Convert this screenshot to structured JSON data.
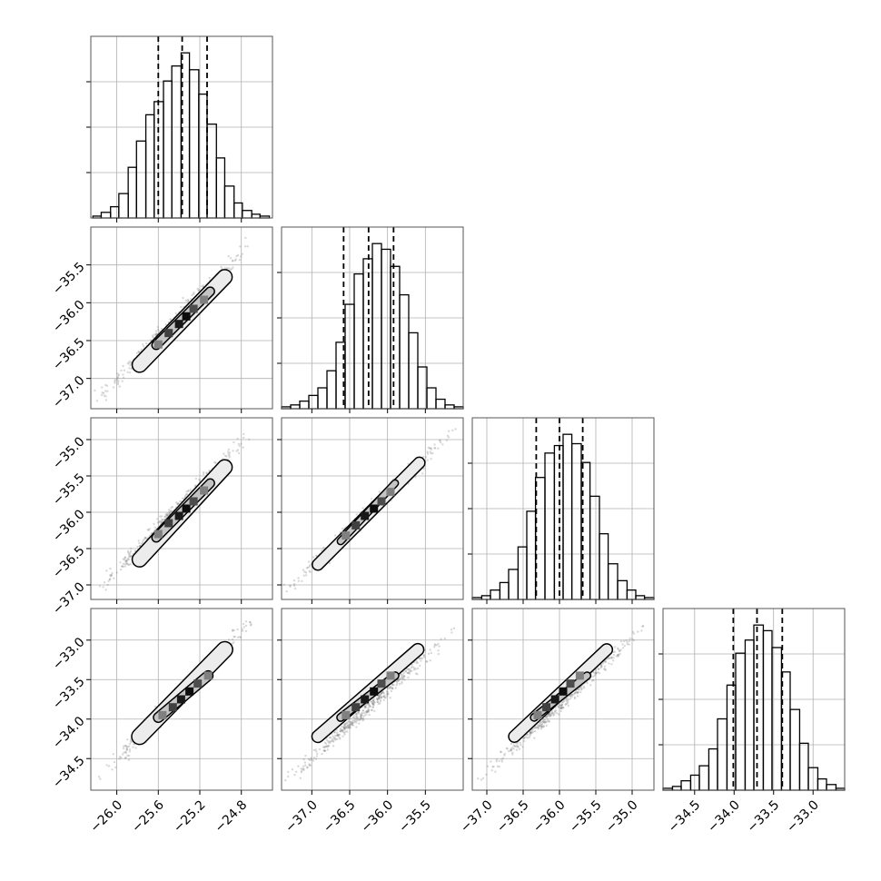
{
  "chart_data": {
    "type": "corner",
    "parameters": 4,
    "colors": {
      "line": "#000000",
      "grid": "#b0b0b0",
      "scatter": "#777777"
    },
    "grid": true,
    "axes": {
      "x": [
        {
          "range": [
            -26.25,
            -24.5
          ],
          "ticks": [
            -26.0,
            -25.6,
            -25.2,
            -24.8
          ],
          "tick_labels": [
            "−26.0",
            "−25.6",
            "−25.2",
            "−24.8"
          ]
        },
        {
          "range": [
            -37.4,
            -35.0
          ],
          "ticks": [
            -37.0,
            -36.5,
            -36.0,
            -35.5
          ],
          "tick_labels": [
            "−37.0",
            "−36.5",
            "−36.0",
            "−35.5"
          ]
        },
        {
          "range": [
            -37.2,
            -34.7
          ],
          "ticks": [
            -37.0,
            -36.5,
            -36.0,
            -35.5,
            -35.0
          ],
          "tick_labels": [
            "−37.0",
            "−36.5",
            "−36.0",
            "−35.5",
            "−35.0"
          ]
        },
        {
          "range": [
            -34.9,
            -32.6
          ],
          "ticks": [
            -34.5,
            -34.0,
            -33.5,
            -33.0
          ],
          "tick_labels": [
            "−34.5",
            "−34.0",
            "−33.5",
            "−33.0"
          ]
        }
      ],
      "y": [
        null,
        {
          "range": [
            -37.4,
            -35.0
          ],
          "ticks": [
            -35.5,
            -36.0,
            -36.5,
            -37.0
          ],
          "tick_labels": [
            "−35.5",
            "−36.0",
            "−36.5",
            "−37.0"
          ]
        },
        {
          "range": [
            -37.2,
            -34.7
          ],
          "ticks": [
            -35.0,
            -35.5,
            -36.0,
            -36.5,
            -37.0
          ],
          "tick_labels": [
            "−35.0",
            "−35.5",
            "−36.0",
            "−36.5",
            "−37.0"
          ]
        },
        {
          "range": [
            -34.9,
            -32.6
          ],
          "ticks": [
            -33.0,
            -33.5,
            -34.0,
            -34.5
          ],
          "tick_labels": [
            "−33.0",
            "−33.5",
            "−34.0",
            "−34.5"
          ]
        }
      ]
    },
    "quantiles": [
      [
        -25.6,
        -25.37,
        -25.13
      ],
      [
        -36.58,
        -36.25,
        -35.92
      ],
      [
        -36.32,
        -36.0,
        -35.68
      ],
      [
        -34.01,
        -33.71,
        -33.39
      ]
    ],
    "histograms": [
      {
        "bin_edges": [
          -26.23,
          -26.15,
          -26.06,
          -25.98,
          -25.89,
          -25.81,
          -25.72,
          -25.64,
          -25.55,
          -25.47,
          -25.38,
          -25.3,
          -25.21,
          -25.13,
          -25.04,
          -24.96,
          -24.87,
          -24.79,
          -24.7,
          -24.62,
          -24.53
        ],
        "counts": [
          1,
          3,
          6,
          13,
          27,
          41,
          55,
          62,
          73,
          81,
          88,
          79,
          66,
          50,
          32,
          17,
          8,
          4,
          2,
          1
        ]
      },
      {
        "bin_edges": [
          -37.4,
          -37.28,
          -37.16,
          -37.04,
          -36.92,
          -36.8,
          -36.68,
          -36.56,
          -36.44,
          -36.32,
          -36.2,
          -36.08,
          -35.96,
          -35.84,
          -35.72,
          -35.6,
          -35.48,
          -35.36,
          -35.24,
          -35.12,
          -35.0
        ],
        "counts": [
          1,
          2,
          4,
          7,
          11,
          20,
          35,
          55,
          71,
          79,
          87,
          84,
          75,
          60,
          40,
          22,
          11,
          5,
          2,
          1
        ]
      },
      {
        "bin_edges": [
          -37.2,
          -37.07,
          -36.95,
          -36.82,
          -36.7,
          -36.57,
          -36.45,
          -36.33,
          -36.2,
          -36.07,
          -35.95,
          -35.83,
          -35.7,
          -35.58,
          -35.45,
          -35.33,
          -35.2,
          -35.07,
          -34.95,
          -34.83,
          -34.7
        ],
        "counts": [
          1,
          2,
          5,
          9,
          16,
          28,
          47,
          65,
          78,
          82,
          88,
          83,
          73,
          55,
          35,
          19,
          10,
          5,
          2,
          1
        ]
      },
      {
        "bin_edges": [
          -34.9,
          -34.78,
          -34.67,
          -34.55,
          -34.44,
          -34.32,
          -34.21,
          -34.09,
          -33.98,
          -33.86,
          -33.75,
          -33.63,
          -33.52,
          -33.4,
          -33.29,
          -33.17,
          -33.06,
          -32.94,
          -32.83,
          -32.71,
          -32.6
        ],
        "counts": [
          1,
          2,
          5,
          8,
          13,
          22,
          38,
          56,
          73,
          80,
          88,
          85,
          76,
          63,
          43,
          25,
          12,
          6,
          3,
          1
        ]
      }
    ],
    "joint": [
      {
        "row": 1,
        "col": 0,
        "scatter_start": [
          -26.2,
          -37.3
        ],
        "scatter_end": [
          -24.7,
          -35.2
        ],
        "contour_outer": [
          [
            -25.78,
            -36.82
          ],
          [
            -24.96,
            -35.66
          ]
        ],
        "outer_width": 0.13,
        "contour_inner": [
          [
            -25.62,
            -36.56
          ],
          [
            -25.1,
            -35.85
          ]
        ],
        "inner_width": 0.07,
        "cells": [
          [
            -25.6,
            -36.55,
            0.5
          ],
          [
            -25.5,
            -36.4,
            0.75
          ],
          [
            -25.4,
            -36.28,
            0.9
          ],
          [
            -25.33,
            -36.18,
            0.95
          ],
          [
            -25.26,
            -36.08,
            0.7
          ],
          [
            -25.16,
            -35.96,
            0.5
          ]
        ]
      },
      {
        "row": 2,
        "col": 0,
        "scatter_start": [
          -26.2,
          -37.1
        ],
        "scatter_end": [
          -24.7,
          -34.9
        ],
        "contour_outer": [
          [
            -25.78,
            -36.65
          ],
          [
            -24.96,
            -35.38
          ]
        ],
        "outer_width": 0.13,
        "contour_inner": [
          [
            -25.62,
            -36.35
          ],
          [
            -25.1,
            -35.6
          ]
        ],
        "inner_width": 0.07,
        "cells": [
          [
            -25.6,
            -36.3,
            0.5
          ],
          [
            -25.5,
            -36.15,
            0.75
          ],
          [
            -25.4,
            -36.05,
            0.9
          ],
          [
            -25.33,
            -35.95,
            0.95
          ],
          [
            -25.26,
            -35.85,
            0.7
          ],
          [
            -25.16,
            -35.7,
            0.5
          ]
        ]
      },
      {
        "row": 2,
        "col": 1,
        "scatter_start": [
          -37.35,
          -37.1
        ],
        "scatter_end": [
          -35.1,
          -34.85
        ],
        "contour_outer": [
          [
            -36.92,
            -36.72
          ],
          [
            -35.58,
            -35.32
          ]
        ],
        "outer_width": 0.13,
        "contour_inner": [
          [
            -36.62,
            -36.4
          ],
          [
            -35.9,
            -35.6
          ]
        ],
        "inner_width": 0.07,
        "cells": [
          [
            -36.55,
            -36.32,
            0.5
          ],
          [
            -36.42,
            -36.18,
            0.75
          ],
          [
            -36.3,
            -36.05,
            0.9
          ],
          [
            -36.18,
            -35.95,
            0.95
          ],
          [
            -36.08,
            -35.85,
            0.7
          ],
          [
            -35.96,
            -35.72,
            0.5
          ]
        ]
      },
      {
        "row": 3,
        "col": 0,
        "scatter_start": [
          -26.2,
          -34.8
        ],
        "scatter_end": [
          -24.7,
          -32.75
        ],
        "contour_outer": [
          [
            -25.78,
            -34.22
          ],
          [
            -24.96,
            -33.12
          ]
        ],
        "outer_width": 0.14,
        "contour_inner": [
          [
            -25.6,
            -33.98
          ],
          [
            -25.12,
            -33.45
          ]
        ],
        "inner_width": 0.08,
        "cells": [
          [
            -25.56,
            -33.95,
            0.5
          ],
          [
            -25.46,
            -33.85,
            0.75
          ],
          [
            -25.38,
            -33.75,
            0.9
          ],
          [
            -25.3,
            -33.65,
            0.95
          ],
          [
            -25.22,
            -33.55,
            0.7
          ],
          [
            -25.12,
            -33.45,
            0.5
          ]
        ]
      },
      {
        "row": 3,
        "col": 1,
        "scatter_start": [
          -37.35,
          -34.8
        ],
        "scatter_end": [
          -35.05,
          -32.8
        ],
        "contour_outer": [
          [
            -36.92,
            -34.22
          ],
          [
            -35.6,
            -33.12
          ]
        ],
        "outer_width": 0.14,
        "contour_inner": [
          [
            -36.62,
            -33.98
          ],
          [
            -35.9,
            -33.45
          ]
        ],
        "inner_width": 0.08,
        "cells": [
          [
            -36.55,
            -33.95,
            0.5
          ],
          [
            -36.42,
            -33.85,
            0.75
          ],
          [
            -36.3,
            -33.75,
            0.9
          ],
          [
            -36.18,
            -33.65,
            0.95
          ],
          [
            -36.08,
            -33.55,
            0.7
          ],
          [
            -35.96,
            -33.45,
            0.5
          ]
        ]
      },
      {
        "row": 3,
        "col": 2,
        "scatter_start": [
          -37.15,
          -34.8
        ],
        "scatter_end": [
          -34.8,
          -32.8
        ],
        "contour_outer": [
          [
            -36.62,
            -34.22
          ],
          [
            -35.35,
            -33.12
          ]
        ],
        "outer_width": 0.14,
        "contour_inner": [
          [
            -36.35,
            -33.98
          ],
          [
            -35.62,
            -33.45
          ]
        ],
        "inner_width": 0.08,
        "cells": [
          [
            -36.3,
            -33.95,
            0.5
          ],
          [
            -36.18,
            -33.85,
            0.75
          ],
          [
            -36.06,
            -33.75,
            0.9
          ],
          [
            -35.95,
            -33.65,
            0.95
          ],
          [
            -35.85,
            -33.55,
            0.7
          ],
          [
            -35.72,
            -33.45,
            0.5
          ]
        ]
      }
    ]
  }
}
